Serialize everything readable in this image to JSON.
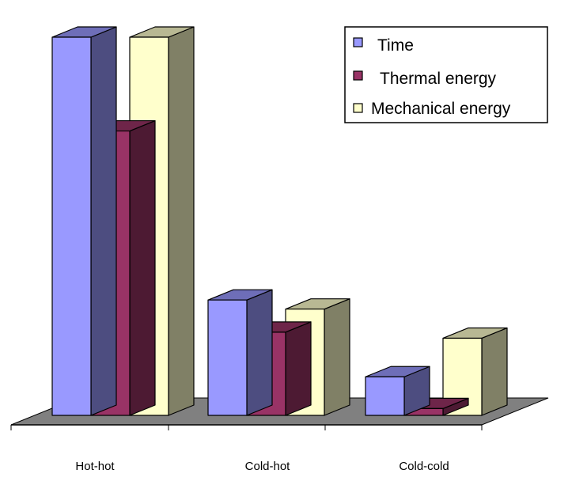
{
  "chart_data": {
    "type": "bar",
    "subtype": "3d-clustered",
    "categories": [
      "Hot-hot",
      "Cold-hot",
      "Cold-cold"
    ],
    "series": [
      {
        "name": "Time",
        "values": [
          100,
          30.5,
          10.2
        ],
        "color": "#9999FF"
      },
      {
        "name": "Thermal energy",
        "values": [
          75.2,
          22,
          1.8
        ],
        "color": "#993366"
      },
      {
        "name": "Mechanical energy",
        "values": [
          100,
          28.1,
          20.4
        ],
        "color": "#FFFFCC"
      }
    ],
    "title": "",
    "xlabel": "",
    "ylabel": "",
    "ylim": [
      0,
      100
    ],
    "grid": false,
    "y_axis_visible": false,
    "legend_position": "top-right",
    "floor_color": "#808080"
  }
}
